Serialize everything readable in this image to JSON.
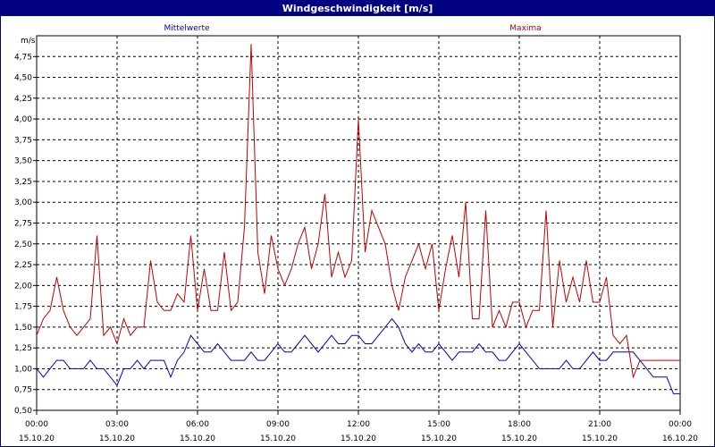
{
  "window": {
    "title": "Windgeschwindigkeit [m/s]"
  },
  "colors": {
    "mean": "#0000c0",
    "max": "#c00000",
    "frame": "#000080"
  },
  "chart_data": {
    "type": "line",
    "title": "Windgeschwindigkeit [m/s]",
    "ylabel": "m/s",
    "xlabel": "",
    "ylim": [
      0.5,
      5.0
    ],
    "yticks": [
      "0,50",
      "0,75",
      "1,00",
      "1,25",
      "1,50",
      "1,75",
      "2,00",
      "2,25",
      "2,50",
      "2,75",
      "3,00",
      "3,25",
      "3,50",
      "3,75",
      "4,00",
      "4,25",
      "4,50",
      "4,75"
    ],
    "xticks": [
      {
        "time": "00:00",
        "date": "15.10.20"
      },
      {
        "time": "03:00",
        "date": "15.10.20"
      },
      {
        "time": "06:00",
        "date": "15.10.20"
      },
      {
        "time": "09:00",
        "date": "15.10.20"
      },
      {
        "time": "12:00",
        "date": "15.10.20"
      },
      {
        "time": "15:00",
        "date": "15.10.20"
      },
      {
        "time": "18:00",
        "date": "15.10.20"
      },
      {
        "time": "21:00",
        "date": "15.10.20"
      },
      {
        "time": "00:00",
        "date": "16.10.20"
      }
    ],
    "grid": true,
    "series": [
      {
        "name": "Mittelwerte",
        "color": "#0000c0",
        "x": [
          0,
          0.25,
          0.5,
          0.75,
          1,
          1.25,
          1.5,
          1.75,
          2,
          2.25,
          2.5,
          2.75,
          3,
          3.25,
          3.5,
          3.75,
          4,
          4.25,
          4.5,
          4.75,
          5,
          5.25,
          5.5,
          5.75,
          6,
          6.25,
          6.5,
          6.75,
          7,
          7.25,
          7.5,
          7.75,
          8,
          8.25,
          8.5,
          8.75,
          9,
          9.25,
          9.5,
          9.75,
          10,
          10.25,
          10.5,
          10.75,
          11,
          11.25,
          11.5,
          11.75,
          12,
          12.25,
          12.5,
          12.75,
          13,
          13.25,
          13.5,
          13.75,
          14,
          14.25,
          14.5,
          14.75,
          15,
          15.25,
          15.5,
          15.75,
          16,
          16.25,
          16.5,
          16.75,
          17,
          17.25,
          17.5,
          17.75,
          18,
          18.25,
          18.5,
          18.75,
          19,
          19.25,
          19.5,
          19.75,
          20,
          20.25,
          20.5,
          20.75,
          21,
          21.25,
          21.5,
          21.75,
          22,
          22.25,
          22.5,
          22.75,
          23,
          23.25,
          23.5,
          23.75,
          24
        ],
        "values": [
          1.0,
          0.9,
          1.0,
          1.1,
          1.1,
          1.0,
          1.0,
          1.0,
          1.1,
          1.0,
          1.0,
          0.9,
          0.8,
          1.0,
          1.0,
          1.1,
          1.0,
          1.1,
          1.1,
          1.1,
          0.9,
          1.1,
          1.2,
          1.4,
          1.3,
          1.2,
          1.2,
          1.3,
          1.2,
          1.1,
          1.1,
          1.1,
          1.2,
          1.1,
          1.1,
          1.2,
          1.3,
          1.2,
          1.2,
          1.3,
          1.4,
          1.3,
          1.2,
          1.3,
          1.4,
          1.3,
          1.3,
          1.4,
          1.4,
          1.3,
          1.3,
          1.4,
          1.5,
          1.6,
          1.5,
          1.3,
          1.2,
          1.3,
          1.2,
          1.2,
          1.3,
          1.2,
          1.1,
          1.2,
          1.2,
          1.2,
          1.3,
          1.2,
          1.2,
          1.1,
          1.1,
          1.2,
          1.3,
          1.2,
          1.1,
          1.0,
          1.0,
          1.0,
          1.0,
          1.1,
          1.0,
          1.0,
          1.1,
          1.2,
          1.1,
          1.1,
          1.2,
          1.2,
          1.2,
          1.2,
          1.1,
          1.0,
          0.9,
          0.9,
          0.9,
          0.7,
          0.7
        ]
      },
      {
        "name": "Maxima",
        "color": "#c00000",
        "x": [
          0,
          0.25,
          0.5,
          0.75,
          1,
          1.25,
          1.5,
          1.75,
          2,
          2.25,
          2.5,
          2.75,
          3,
          3.25,
          3.5,
          3.75,
          4,
          4.25,
          4.5,
          4.75,
          5,
          5.25,
          5.5,
          5.75,
          6,
          6.25,
          6.5,
          6.75,
          7,
          7.25,
          7.5,
          7.75,
          8,
          8.25,
          8.5,
          8.75,
          9,
          9.25,
          9.5,
          9.75,
          10,
          10.25,
          10.5,
          10.75,
          11,
          11.25,
          11.5,
          11.75,
          12,
          12.25,
          12.5,
          12.75,
          13,
          13.25,
          13.5,
          13.75,
          14,
          14.25,
          14.5,
          14.75,
          15,
          15.25,
          15.5,
          15.75,
          16,
          16.25,
          16.5,
          16.75,
          17,
          17.25,
          17.5,
          17.75,
          18,
          18.25,
          18.5,
          18.75,
          19,
          19.25,
          19.5,
          19.75,
          20,
          20.25,
          20.5,
          20.75,
          21,
          21.25,
          21.5,
          21.75,
          22,
          22.25,
          22.5,
          22.75,
          23,
          23.25,
          23.5,
          23.75,
          24
        ],
        "values": [
          1.4,
          1.6,
          1.7,
          2.1,
          1.7,
          1.5,
          1.4,
          1.5,
          1.6,
          2.6,
          1.4,
          1.5,
          1.3,
          1.6,
          1.4,
          1.5,
          1.5,
          2.3,
          1.8,
          1.7,
          1.7,
          1.9,
          1.8,
          2.6,
          1.7,
          2.2,
          1.7,
          1.7,
          2.4,
          1.7,
          1.8,
          2.7,
          4.9,
          2.4,
          1.9,
          2.6,
          2.2,
          2.0,
          2.2,
          2.5,
          2.7,
          2.2,
          2.5,
          3.1,
          2.1,
          2.4,
          2.1,
          2.3,
          4.0,
          2.4,
          2.9,
          2.7,
          2.5,
          2.0,
          1.7,
          2.1,
          2.3,
          2.5,
          2.2,
          2.5,
          1.7,
          2.2,
          2.6,
          2.1,
          3.0,
          1.6,
          1.6,
          2.9,
          1.5,
          1.7,
          1.5,
          1.8,
          1.8,
          1.5,
          1.7,
          1.7,
          2.9,
          1.5,
          2.3,
          1.8,
          2.1,
          1.8,
          2.3,
          1.8,
          1.8,
          2.1,
          1.4,
          1.3,
          1.4,
          0.9,
          1.1,
          1.1,
          1.1,
          1.1,
          1.1,
          1.1,
          1.1
        ]
      }
    ]
  }
}
